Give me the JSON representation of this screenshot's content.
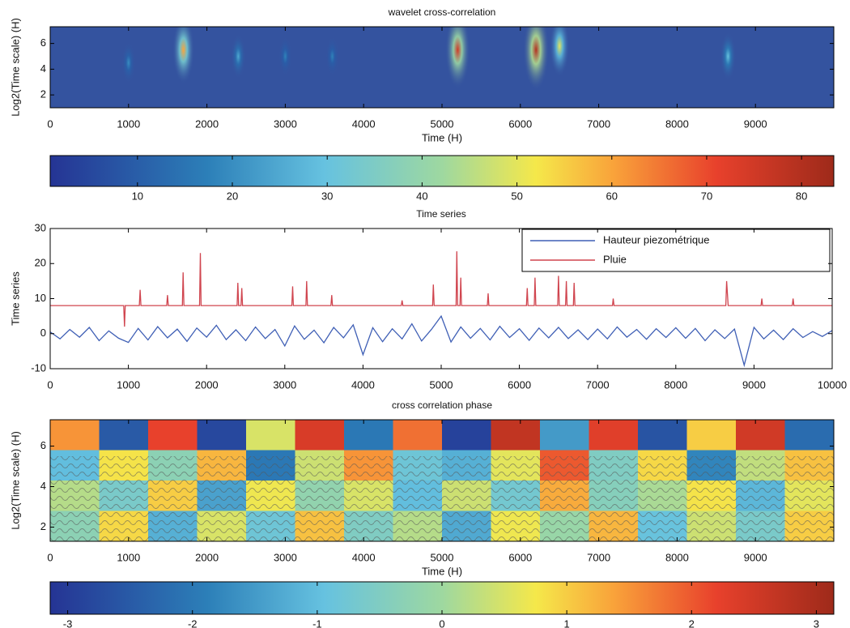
{
  "chart_data": [
    {
      "type": "heatmap",
      "title": "wavelet cross-correlation",
      "xlabel": "Time (H)",
      "ylabel": "Log2(Time scale) (H)",
      "xlim": [
        0,
        10000
      ],
      "xticks": [
        0,
        1000,
        2000,
        3000,
        4000,
        5000,
        6000,
        7000,
        8000,
        9000
      ],
      "ylim": [
        1,
        7.3
      ],
      "yticks": [
        2,
        4,
        6
      ],
      "x": [
        1000,
        1700,
        2400,
        3000,
        3600,
        5200,
        6200,
        6500,
        8650
      ],
      "y": [
        4.5,
        5.5,
        5,
        5,
        5,
        5.5,
        5.5,
        5.8,
        5
      ],
      "values": [
        20,
        60,
        25,
        18,
        18,
        75,
        80,
        50,
        30
      ],
      "clim": [
        0.8,
        83.4
      ],
      "cticks": [
        10,
        20,
        30,
        40,
        50,
        60,
        70,
        80
      ]
    },
    {
      "type": "line",
      "title": "Time series",
      "ylabel": "Time series",
      "xlim": [
        0,
        10000
      ],
      "xticks": [
        0,
        1000,
        2000,
        3000,
        4000,
        5000,
        6000,
        7000,
        8000,
        9000,
        10000
      ],
      "ylim": [
        -10,
        30
      ],
      "yticks": [
        -10,
        0,
        10,
        20,
        30
      ],
      "legend": "upper right",
      "series": [
        {
          "name": "Hauteur piezométrique",
          "color": "#3f5fb5",
          "x": [
            0,
            125,
            250,
            375,
            500,
            625,
            750,
            875,
            1000,
            1125,
            1250,
            1375,
            1500,
            1625,
            1750,
            1875,
            2000,
            2125,
            2250,
            2375,
            2500,
            2625,
            2750,
            2875,
            3000,
            3125,
            3250,
            3375,
            3500,
            3625,
            3750,
            3875,
            4000,
            4125,
            4250,
            4375,
            4500,
            4625,
            4750,
            4875,
            5000,
            5125,
            5250,
            5375,
            5500,
            5625,
            5750,
            5875,
            6000,
            6125,
            6250,
            6375,
            6500,
            6625,
            6750,
            6875,
            7000,
            7125,
            7250,
            7375,
            7500,
            7625,
            7750,
            7875,
            8000,
            8125,
            8250,
            8375,
            8500,
            8625,
            8750,
            8875,
            9000,
            9125,
            9250,
            9375,
            9500,
            9625,
            9750,
            9875,
            10000
          ],
          "values": [
            0.5,
            -1.5,
            1.2,
            -1,
            1.8,
            -2,
            0.8,
            -1.3,
            -2.5,
            1.5,
            -1.8,
            2,
            -1.2,
            1.3,
            -2.2,
            1.6,
            -1,
            2.4,
            -1.7,
            1.1,
            -2,
            1.9,
            -1.4,
            1.2,
            -3.5,
            2.2,
            -1.6,
            1,
            -2.6,
            1.8,
            -1.2,
            2.5,
            -6,
            1.7,
            -2.3,
            1.4,
            -1.5,
            2.8,
            -2.1,
            1.2,
            5,
            -2.4,
            1.9,
            -1.3,
            1.5,
            -1.8,
            2.1,
            -1.1,
            1.4,
            -1.9,
            1.6,
            -1.2,
            1.8,
            -1.4,
            1.1,
            -1.7,
            1.3,
            -1.5,
            1.9,
            -1,
            1.2,
            -1.6,
            1.4,
            -1.1,
            1.7,
            -1.3,
            1.5,
            -2,
            1.1,
            -1.4,
            1.3,
            -9,
            1.8,
            -1.5,
            1,
            -1.7,
            1.4,
            -1.1,
            0.6,
            -0.8,
            0.9
          ]
        },
        {
          "name": "Pluie",
          "color": "#d0454f",
          "x": [
            0,
            940,
            950,
            960,
            1140,
            1150,
            1160,
            1490,
            1500,
            1510,
            1690,
            1700,
            1710,
            1910,
            1920,
            1930,
            2390,
            2400,
            2410,
            2440,
            2450,
            2460,
            3090,
            3100,
            3110,
            3270,
            3280,
            3290,
            3590,
            3600,
            3610,
            4490,
            4500,
            4510,
            4890,
            4900,
            4910,
            5190,
            5200,
            5210,
            5240,
            5250,
            5260,
            5590,
            5600,
            5610,
            6090,
            6100,
            6110,
            6190,
            6200,
            6210,
            6490,
            6500,
            6510,
            6590,
            6600,
            6610,
            6690,
            6700,
            6710,
            7190,
            7200,
            7210,
            8640,
            8650,
            8670,
            9090,
            9100,
            9110,
            9490,
            9500,
            9510,
            10000
          ],
          "values": [
            8,
            8,
            2,
            8,
            8,
            12.5,
            8,
            8,
            11,
            8,
            8,
            17.5,
            8,
            8,
            23,
            8,
            8,
            14.5,
            8,
            8,
            13,
            8,
            8,
            13.5,
            8,
            8,
            15,
            8,
            8,
            11,
            8,
            8,
            9.5,
            8,
            8,
            14,
            8,
            8,
            23.5,
            8,
            8,
            16,
            8,
            8,
            11.5,
            8,
            8,
            13,
            8,
            8,
            16,
            8,
            8,
            16.5,
            8,
            8,
            15,
            8,
            8,
            14.5,
            8,
            8,
            10,
            8,
            8,
            15,
            8,
            8,
            10,
            8,
            8,
            10,
            8,
            8
          ]
        }
      ]
    },
    {
      "type": "heatmap-grid",
      "title": "cross correlation phase",
      "xlabel": "Time (H)",
      "ylabel": "Log2(Time scale) (H)",
      "xlim": [
        0,
        10000
      ],
      "xticks": [
        0,
        1000,
        2000,
        3000,
        4000,
        5000,
        6000,
        7000,
        8000,
        9000
      ],
      "ylim": [
        1.3,
        7.3
      ],
      "yticks": [
        2,
        4,
        6
      ],
      "z": [
        [
          1.5,
          -2.5,
          2.2,
          -2.8,
          0.5,
          2.4,
          -2,
          1.8,
          -2.9,
          2.7,
          -1.5,
          2.3,
          -2.6,
          1,
          2.5,
          -2.2
        ],
        [
          -1,
          0.8,
          -0.3,
          1.2,
          -2,
          0.4,
          1.5,
          -0.8,
          -1.2,
          0.6,
          2,
          -0.5,
          0.9,
          -1.8,
          0.3,
          1.1
        ],
        [
          0.2,
          -0.6,
          1,
          -1.4,
          0.7,
          -0.2,
          0.5,
          -1,
          0.4,
          -0.7,
          1.3,
          -0.4,
          0.1,
          0.8,
          -1.1,
          0.6
        ],
        [
          -0.3,
          0.9,
          -1.2,
          0.5,
          -0.8,
          1.1,
          -0.5,
          0.2,
          -1.3,
          0.7,
          -0.1,
          1.2,
          -0.9,
          0.4,
          -0.6,
          1
        ]
      ],
      "clim": [
        -3.14,
        3.14
      ],
      "cticks": [
        -3,
        -2,
        -1,
        0,
        1,
        2,
        3
      ]
    }
  ]
}
